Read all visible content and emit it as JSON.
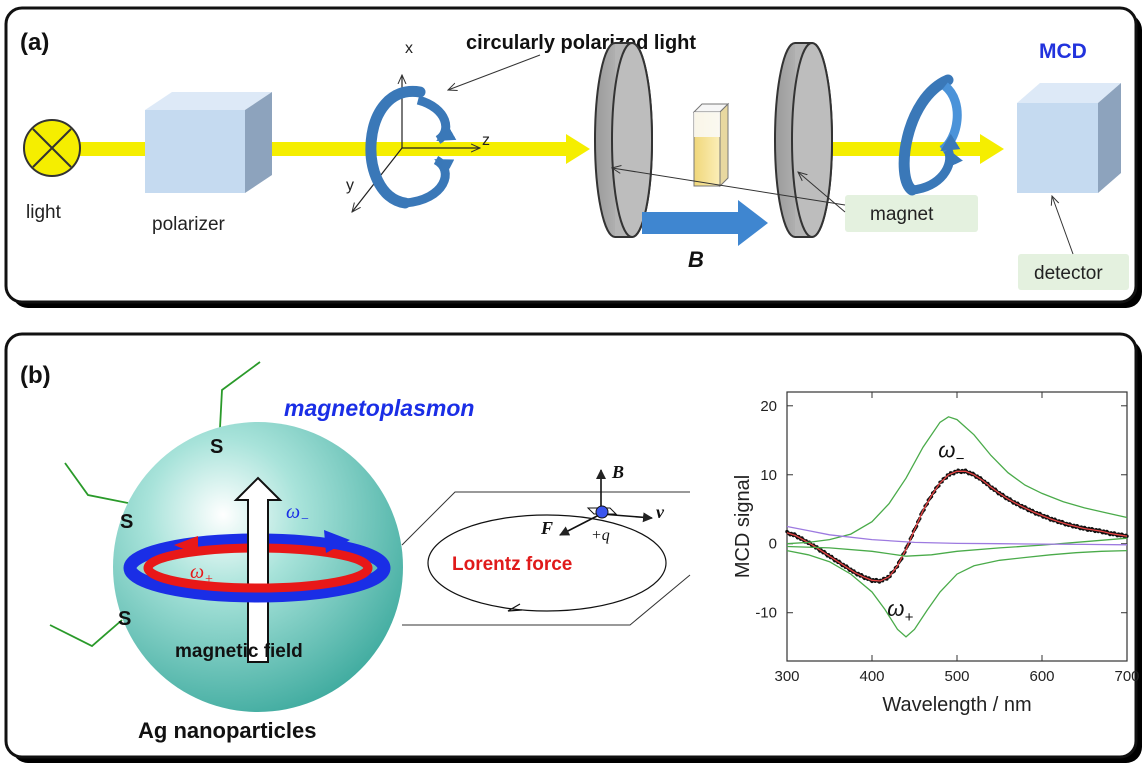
{
  "panel_a": {
    "label": "(a)",
    "light_label": "light",
    "polarizer_label": "polarizer",
    "axis_x": "x",
    "axis_y": "y",
    "axis_z": "z",
    "cpl_label": "circularly polarized light",
    "field_label": "B",
    "magnet_label": "magnet",
    "mcd_label": "MCD",
    "detector_label": "detector"
  },
  "panel_b": {
    "label": "(b)",
    "magnetoplasmon_label": "magnetoplasmon",
    "s_label": "S",
    "omega_minus": "ω",
    "omega_minus_sub": "−",
    "omega_plus": "ω",
    "omega_plus_sub": "+",
    "magnetic_field_label": "magnetic field",
    "nanoparticle_label": "Ag nanoparticles",
    "lorentz_label": "Lorentz force",
    "vec_B": "B",
    "vec_F": "F",
    "vec_v": "v",
    "charge": "+q"
  },
  "colors": {
    "beam": "#f5ee00",
    "box_front": "#c5daf0",
    "box_top": "#dde9f7",
    "box_side": "#8da3bd",
    "rotation_arrow": "#3a78b8",
    "field_arrow": "#3f86d0",
    "label_bg": "#e4f1df",
    "mcd_text": "#2233dd",
    "sphere": "#56c3b5",
    "ring_outer": "#1a2ee6",
    "ring_inner": "#e81818",
    "lorentz_text": "#e01a1a",
    "fit_line": "#e84545",
    "component_line": "#4aab4a",
    "baseline": "#9d7ae0"
  },
  "chart_data": {
    "type": "line",
    "title": "",
    "xlabel": "Wavelength / nm",
    "ylabel": "MCD signal",
    "xlim": [
      300,
      700
    ],
    "ylim": [
      -17,
      22
    ],
    "xticks": [
      300,
      400,
      500,
      600,
      700
    ],
    "yticks": [
      -10,
      0,
      10,
      20
    ],
    "grid": false,
    "legend": "none",
    "annotations": [
      {
        "text": "ω",
        "sub": "−",
        "x": 478,
        "y": 12.5
      },
      {
        "text": "ω",
        "sub": "+",
        "x": 418,
        "y": -10.5
      }
    ],
    "series": [
      {
        "kind": "points",
        "x": [
          300,
          310,
          320,
          330,
          340,
          350,
          360,
          370,
          380,
          390,
          400,
          410,
          420,
          430,
          440,
          450,
          460,
          470,
          480,
          490,
          500,
          510,
          520,
          530,
          540,
          550,
          560,
          570,
          580,
          590,
          600,
          610,
          620,
          630,
          640,
          650,
          660,
          670,
          680,
          690,
          700
        ],
        "y": [
          1.6,
          1.2,
          0.5,
          -0.2,
          -1.0,
          -1.8,
          -2.6,
          -3.4,
          -4.2,
          -4.8,
          -5.3,
          -5.4,
          -4.8,
          -3.2,
          -0.8,
          2.0,
          4.8,
          7.0,
          8.8,
          10.0,
          10.5,
          10.5,
          10.0,
          9.2,
          8.2,
          7.3,
          6.5,
          5.8,
          5.2,
          4.6,
          4.1,
          3.6,
          3.2,
          2.8,
          2.5,
          2.2,
          2.0,
          1.8,
          1.5,
          1.3,
          1.1
        ]
      },
      {
        "kind": "line",
        "color": "#e84545",
        "x": [
          300,
          310,
          320,
          330,
          340,
          350,
          360,
          370,
          380,
          390,
          400,
          410,
          420,
          430,
          440,
          450,
          460,
          470,
          480,
          490,
          500,
          510,
          520,
          530,
          540,
          550,
          560,
          570,
          580,
          590,
          600,
          610,
          620,
          630,
          640,
          650,
          660,
          670,
          680,
          690,
          700
        ],
        "y": [
          1.6,
          1.2,
          0.5,
          -0.2,
          -1.0,
          -1.8,
          -2.6,
          -3.4,
          -4.2,
          -4.8,
          -5.3,
          -5.4,
          -4.8,
          -3.2,
          -0.8,
          2.0,
          4.8,
          7.0,
          8.8,
          10.0,
          10.5,
          10.5,
          10.0,
          9.2,
          8.2,
          7.3,
          6.5,
          5.8,
          5.2,
          4.6,
          4.1,
          3.6,
          3.2,
          2.8,
          2.5,
          2.2,
          2.0,
          1.8,
          1.5,
          1.3,
          1.1
        ]
      },
      {
        "kind": "line",
        "color": "#4aab4a",
        "x": [
          300,
          325,
          350,
          375,
          400,
          420,
          440,
          460,
          480,
          490,
          500,
          520,
          540,
          560,
          580,
          600,
          625,
          650,
          675,
          700
        ],
        "y": [
          0,
          0.2,
          0.6,
          1.4,
          3.2,
          5.8,
          9.5,
          14.0,
          17.6,
          18.4,
          18.0,
          15.8,
          12.8,
          10.3,
          8.5,
          7.3,
          6.1,
          5.2,
          4.5,
          3.8
        ]
      },
      {
        "kind": "line",
        "color": "#4aab4a",
        "x": [
          300,
          325,
          350,
          375,
          400,
          415,
          430,
          440,
          450,
          465,
          480,
          500,
          520,
          550,
          580,
          610,
          640,
          670,
          700
        ],
        "y": [
          -1.0,
          -1.6,
          -2.6,
          -4.4,
          -7.0,
          -9.5,
          -12.4,
          -13.5,
          -12.4,
          -9.6,
          -7.0,
          -4.4,
          -3.2,
          -2.4,
          -2.0,
          -1.6,
          -1.3,
          -1.1,
          -1.0
        ]
      },
      {
        "kind": "line",
        "color": "#4aab4a",
        "x": [
          300,
          350,
          400,
          440,
          470,
          500,
          550,
          600,
          650,
          700
        ],
        "y": [
          -0.4,
          -0.6,
          -1.1,
          -1.8,
          -1.6,
          -1.1,
          -0.6,
          -0.2,
          0.3,
          0.8
        ]
      },
      {
        "kind": "line",
        "color": "#9d7ae0",
        "x": [
          300,
          325,
          350,
          400,
          450,
          500,
          550,
          600,
          650,
          700
        ],
        "y": [
          2.5,
          1.9,
          1.3,
          0.6,
          0.2,
          0.05,
          0,
          -0.05,
          -0.1,
          -0.15
        ]
      }
    ]
  }
}
